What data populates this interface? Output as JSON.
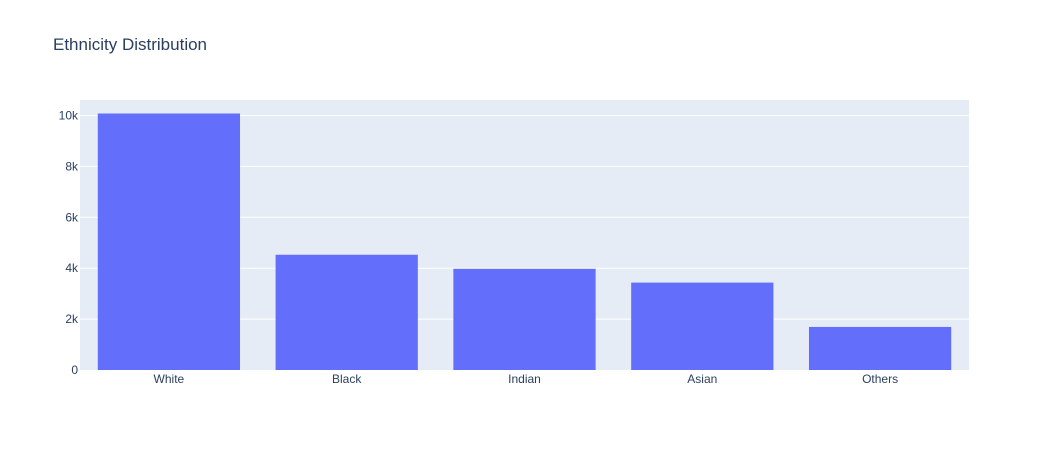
{
  "chart_data": {
    "type": "bar",
    "title": "Ethnicity Distribution",
    "xlabel": "",
    "ylabel": "",
    "categories": [
      "White",
      "Black",
      "Indian",
      "Asian",
      "Others"
    ],
    "values": [
      10078,
      4528,
      3976,
      3434,
      1692
    ],
    "ylim": [
      0,
      10608.42
    ],
    "y_ticks": [
      0,
      2000,
      4000,
      6000,
      8000,
      10000
    ],
    "y_tick_labels": [
      "0",
      "2k",
      "4k",
      "6k",
      "8k",
      "10k"
    ],
    "grid": true,
    "legend": "none",
    "colors": {
      "bar": "#636efa",
      "plot_background": "#e5ecf6",
      "grid": "#ffffff",
      "text": "#2a3f5f"
    }
  }
}
